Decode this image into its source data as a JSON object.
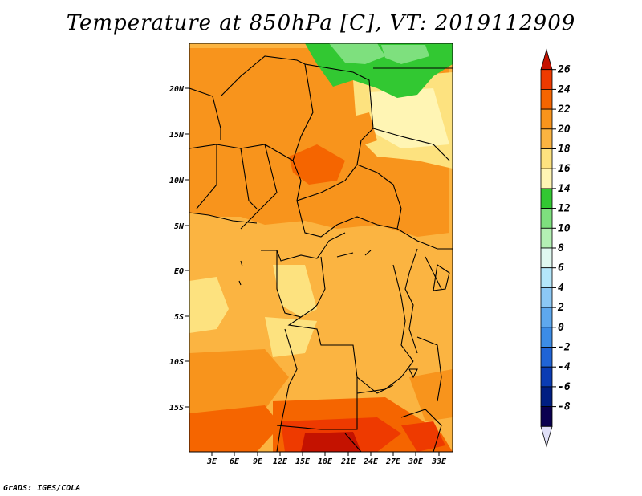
{
  "title": "Temperature at 850hPa [C], VT: 2019112909",
  "credit": "GrADS: IGES/COLA",
  "lat_labels": [
    "20N",
    "15N",
    "10N",
    "5N",
    "EQ",
    "5S",
    "10S",
    "15S"
  ],
  "lon_labels": [
    "3E",
    "6E",
    "9E",
    "12E",
    "15E",
    "18E",
    "21E",
    "24E",
    "27E",
    "30E",
    "33E"
  ],
  "colorbar": {
    "labels": [
      "26",
      "24",
      "22",
      "20",
      "18",
      "16",
      "14",
      "12",
      "10",
      "8",
      "6",
      "4",
      "2",
      "0",
      "-2",
      "-4",
      "-6",
      "-8"
    ],
    "colors": [
      "#c41200",
      "#ee3a00",
      "#f56500",
      "#f8941c",
      "#fbb441",
      "#fde27f",
      "#fff5b4",
      "#32c832",
      "#7ee07e",
      "#b4f0b4",
      "#e0f8f0",
      "#b4e6fa",
      "#8cc8f5",
      "#5ea8ee",
      "#3c8ce6",
      "#2064d6",
      "#0a3cb4",
      "#001e82",
      "#0a0050",
      "#e0e0f8"
    ]
  }
}
